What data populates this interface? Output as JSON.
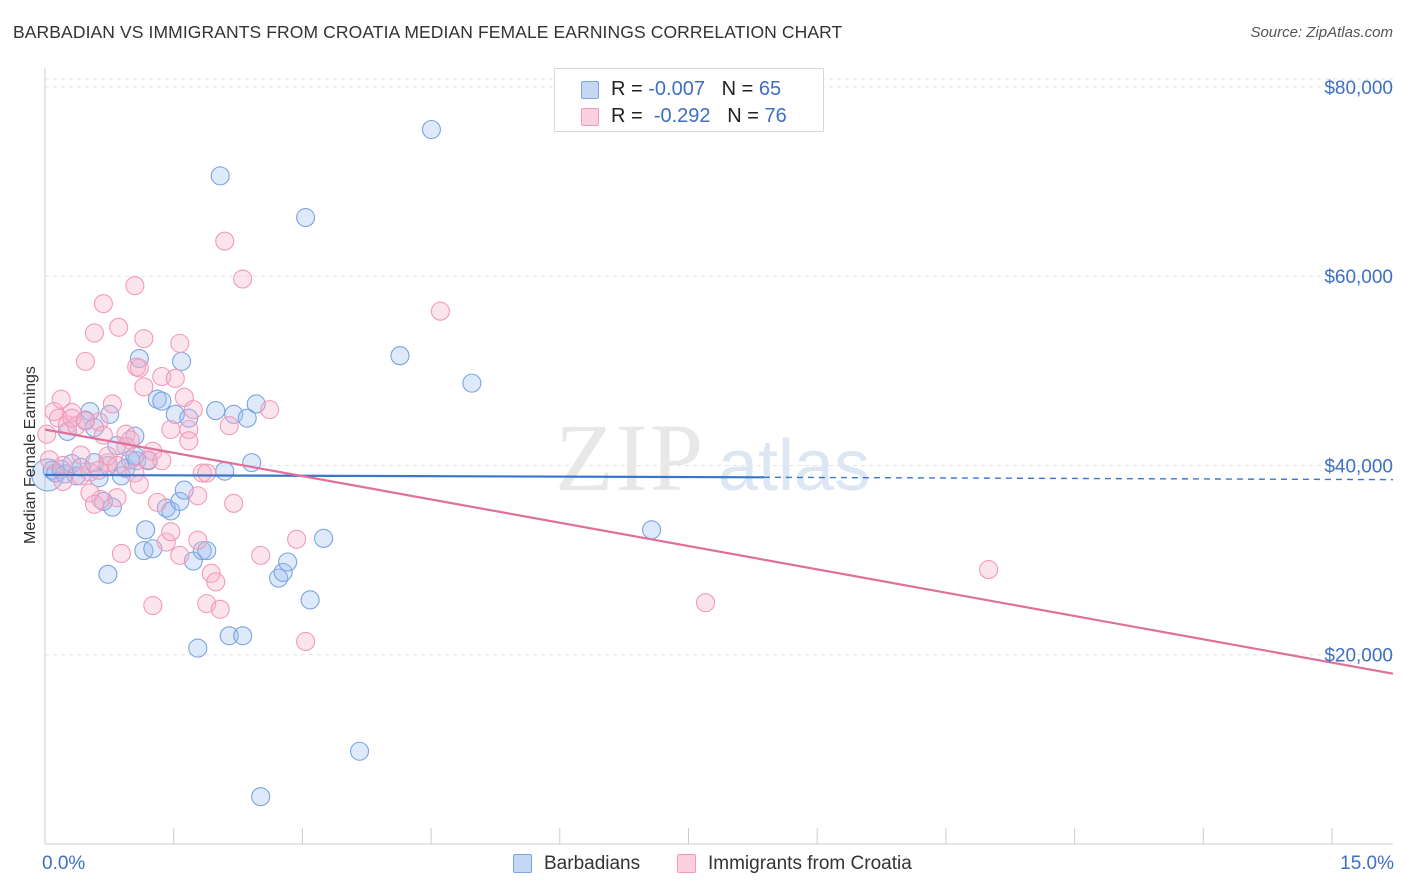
{
  "title": "BARBADIAN VS IMMIGRANTS FROM CROATIA MEDIAN FEMALE EARNINGS CORRELATION CHART",
  "source": "Source: ZipAtlas.com",
  "watermark": {
    "zip": "ZIP",
    "atlas": "atlas"
  },
  "legend": {
    "rows": [
      {
        "r_label": "R =",
        "r_value": "-0.007",
        "n_label": "N =",
        "n_value": "65"
      },
      {
        "r_label": "R =",
        "r_value": "-0.292",
        "n_label": "N =",
        "n_value": "76"
      }
    ]
  },
  "chart_data": {
    "type": "scatter",
    "title": "BARBADIAN VS IMMIGRANTS FROM CROATIA MEDIAN FEMALE EARNINGS CORRELATION CHART",
    "xlabel": "",
    "ylabel": "Median Female Earnings",
    "xlim": [
      0,
      15
    ],
    "ylim": [
      0,
      82000
    ],
    "x_tick_labels": [
      {
        "value": 0,
        "label": "0.0%"
      },
      {
        "value": 15,
        "label": "15.0%"
      }
    ],
    "y_tick_labels": [
      {
        "value": 20000,
        "label": "$20,000"
      },
      {
        "value": 40000,
        "label": "$40,000"
      },
      {
        "value": 60000,
        "label": "$60,000"
      },
      {
        "value": 80000,
        "label": "$80,000"
      }
    ],
    "legend_position": "top-center",
    "grid": true,
    "series": [
      {
        "name": "Barbadians",
        "color": "#7ba4e0",
        "trend_color": "#3a76c8",
        "r": -0.007,
        "n": 65,
        "trend": {
          "x": [
            0,
            8.0
          ],
          "y": [
            39000,
            38750
          ],
          "dashed_to": 15,
          "dashed_y": 38500
        },
        "points": [
          [
            0.03,
            39000,
            16
          ],
          [
            0.08,
            39500,
            9
          ],
          [
            0.12,
            39200,
            9
          ],
          [
            0.18,
            39600,
            9
          ],
          [
            0.22,
            39100,
            9
          ],
          [
            0.3,
            40200,
            9
          ],
          [
            0.35,
            38900,
            9
          ],
          [
            0.4,
            39800,
            9
          ],
          [
            0.45,
            44800,
            9
          ],
          [
            0.5,
            45700,
            9
          ],
          [
            0.55,
            40300,
            9
          ],
          [
            0.6,
            38700,
            9
          ],
          [
            0.65,
            36200,
            9
          ],
          [
            0.7,
            28500,
            9
          ],
          [
            0.72,
            45400,
            9
          ],
          [
            0.75,
            35600,
            9
          ],
          [
            0.8,
            42100,
            9
          ],
          [
            0.85,
            38900,
            9
          ],
          [
            0.9,
            39700,
            9
          ],
          [
            0.95,
            40600,
            9
          ],
          [
            1.0,
            43100,
            9
          ],
          [
            1.02,
            40500,
            9
          ],
          [
            1.05,
            51300,
            9
          ],
          [
            1.1,
            31000,
            9
          ],
          [
            1.12,
            33200,
            9
          ],
          [
            1.2,
            31200,
            9
          ],
          [
            1.25,
            47000,
            9
          ],
          [
            1.3,
            46800,
            9
          ],
          [
            1.35,
            35500,
            9
          ],
          [
            1.4,
            35200,
            9
          ],
          [
            1.45,
            45400,
            9
          ],
          [
            1.5,
            36200,
            9
          ],
          [
            1.52,
            51000,
            9
          ],
          [
            1.55,
            37400,
            9
          ],
          [
            1.6,
            45000,
            9
          ],
          [
            1.65,
            29900,
            9
          ],
          [
            1.7,
            20700,
            9
          ],
          [
            1.75,
            31000,
            9
          ],
          [
            1.8,
            31000,
            9
          ],
          [
            1.9,
            45800,
            9
          ],
          [
            1.95,
            70600,
            9
          ],
          [
            2.0,
            39400,
            9
          ],
          [
            2.05,
            22000,
            9
          ],
          [
            2.1,
            45400,
            9
          ],
          [
            2.2,
            22000,
            9
          ],
          [
            2.25,
            45000,
            9
          ],
          [
            2.3,
            40300,
            9
          ],
          [
            2.35,
            46500,
            9
          ],
          [
            2.4,
            5000,
            9
          ],
          [
            2.6,
            28100,
            9
          ],
          [
            2.65,
            28700,
            9
          ],
          [
            2.7,
            29800,
            9
          ],
          [
            2.9,
            66200,
            9
          ],
          [
            2.95,
            25800,
            9
          ],
          [
            3.1,
            32300,
            9
          ],
          [
            3.5,
            9800,
            9
          ],
          [
            3.95,
            51600,
            9
          ],
          [
            4.3,
            75500,
            9
          ],
          [
            4.75,
            48700,
            9
          ],
          [
            6.75,
            33200,
            9
          ],
          [
            0.25,
            43600,
            9
          ],
          [
            0.55,
            44000,
            9
          ],
          [
            0.7,
            40000,
            9
          ],
          [
            1.0,
            41000,
            9
          ],
          [
            1.15,
            40500,
            9
          ]
        ]
      },
      {
        "name": "Immigrants from Croatia",
        "color": "#f29ab8",
        "trend_color": "#e0709a",
        "r": -0.292,
        "n": 76,
        "trend": {
          "x": [
            0,
            15
          ],
          "y": [
            43800,
            18000
          ]
        },
        "points": [
          [
            0.02,
            43300,
            9
          ],
          [
            0.05,
            40600,
            9
          ],
          [
            0.1,
            45700,
            9
          ],
          [
            0.15,
            45000,
            9
          ],
          [
            0.18,
            47000,
            9
          ],
          [
            0.2,
            40000,
            9
          ],
          [
            0.25,
            44300,
            9
          ],
          [
            0.3,
            45600,
            9
          ],
          [
            0.35,
            44200,
            9
          ],
          [
            0.4,
            38900,
            9
          ],
          [
            0.45,
            51000,
            9
          ],
          [
            0.5,
            39300,
            9
          ],
          [
            0.55,
            54000,
            9
          ],
          [
            0.6,
            44600,
            9
          ],
          [
            0.62,
            36400,
            9
          ],
          [
            0.65,
            57100,
            9
          ],
          [
            0.7,
            40300,
            9
          ],
          [
            0.75,
            46500,
            9
          ],
          [
            0.8,
            36600,
            9
          ],
          [
            0.82,
            54600,
            9
          ],
          [
            0.85,
            30700,
            9
          ],
          [
            0.9,
            43300,
            9
          ],
          [
            0.95,
            42700,
            9
          ],
          [
            1.0,
            39200,
            9
          ],
          [
            1.02,
            50400,
            9
          ],
          [
            1.05,
            38000,
            9
          ],
          [
            1.1,
            53400,
            9
          ],
          [
            1.15,
            40600,
            9
          ],
          [
            1.2,
            25200,
            9
          ],
          [
            1.25,
            36100,
            9
          ],
          [
            1.3,
            49400,
            9
          ],
          [
            1.35,
            31900,
            9
          ],
          [
            1.4,
            43800,
            9
          ],
          [
            1.45,
            49200,
            9
          ],
          [
            1.5,
            52900,
            9
          ],
          [
            1.55,
            47200,
            9
          ],
          [
            1.6,
            43800,
            9
          ],
          [
            1.65,
            45900,
            9
          ],
          [
            1.7,
            36800,
            9
          ],
          [
            1.75,
            39200,
            9
          ],
          [
            1.8,
            25400,
            9
          ],
          [
            1.85,
            28600,
            9
          ],
          [
            1.9,
            27700,
            9
          ],
          [
            1.95,
            24800,
            9
          ],
          [
            2.0,
            63700,
            9
          ],
          [
            2.05,
            44200,
            9
          ],
          [
            2.1,
            36000,
            9
          ],
          [
            2.2,
            59700,
            9
          ],
          [
            2.4,
            30500,
            9
          ],
          [
            2.5,
            45900,
            9
          ],
          [
            2.8,
            32200,
            9
          ],
          [
            2.9,
            21400,
            9
          ],
          [
            4.4,
            56300,
            9
          ],
          [
            7.35,
            25500,
            9
          ],
          [
            10.5,
            29000,
            9
          ],
          [
            0.3,
            45000,
            9
          ],
          [
            0.4,
            41100,
            9
          ],
          [
            0.5,
            37100,
            9
          ],
          [
            0.55,
            35900,
            9
          ],
          [
            0.6,
            39500,
            9
          ],
          [
            0.7,
            41000,
            9
          ],
          [
            0.8,
            40000,
            9
          ],
          [
            0.9,
            42000,
            9
          ],
          [
            1.0,
            59000,
            9
          ],
          [
            1.05,
            50300,
            9
          ],
          [
            1.1,
            48300,
            9
          ],
          [
            1.2,
            41500,
            9
          ],
          [
            1.3,
            40500,
            9
          ],
          [
            1.4,
            33000,
            9
          ],
          [
            1.5,
            30500,
            9
          ],
          [
            1.6,
            42600,
            9
          ],
          [
            1.7,
            32100,
            9
          ],
          [
            1.8,
            39200,
            9
          ],
          [
            0.2,
            38300,
            9
          ],
          [
            0.45,
            44700,
            9
          ],
          [
            0.65,
            43200,
            9
          ]
        ]
      }
    ]
  },
  "bottom_legend": [
    {
      "label": "Barbadians"
    },
    {
      "label": "Immigrants from Croatia"
    }
  ]
}
